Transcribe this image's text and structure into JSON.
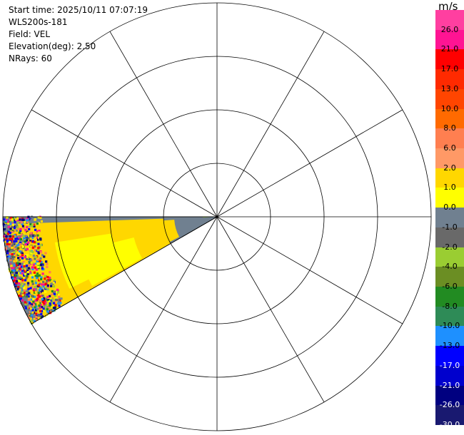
{
  "info": {
    "start_time": "Start time: 2025/10/11 07:07:19",
    "instrument": "WLS200s-181",
    "field": "Field: VEL",
    "elevation": "Elevation(deg): 2.50",
    "nrays": "NRays: 60"
  },
  "colorbar": {
    "unit": "m/s",
    "ticks": [
      "26.0",
      "21.0",
      "17.0",
      "13.0",
      "10.0",
      "8.0",
      "6.0",
      "2.0",
      "1.0",
      "0.0",
      "-1.0",
      "-2.0",
      "-4.0",
      "-6.0",
      "-8.0",
      "-10.0",
      "-13.0",
      "-17.0",
      "-21.0",
      "-26.0",
      "-30.0"
    ],
    "colors": [
      "#ff3fa0",
      "#ff1493",
      "#ff0000",
      "#ff2a00",
      "#ff4500",
      "#ff6a00",
      "#ff7f50",
      "#ff9966",
      "#ffd700",
      "#ffff00",
      "#708090",
      "#696969",
      "#9acd32",
      "#6b8e23",
      "#228b22",
      "#2e8b57",
      "#1e90ff",
      "#0000ff",
      "#0000cd",
      "#000080",
      "#191970"
    ]
  },
  "chart_data": {
    "type": "ppi",
    "field": "VEL",
    "units": "m/s",
    "elevation_deg": 2.5,
    "nrays": 60,
    "range_rings": 4,
    "azimuth_spokes_deg": 30,
    "sector_azimuth_deg": [
      240,
      270
    ],
    "regions": [
      {
        "value_range": "-1.0 to 1.0",
        "color": "#708090",
        "description_range": "near"
      },
      {
        "value_range": "1.0 to 2.0",
        "color": "#ffd700"
      },
      {
        "value_range": "2.0 to 6.0",
        "color": "#ffff00"
      }
    ]
  }
}
